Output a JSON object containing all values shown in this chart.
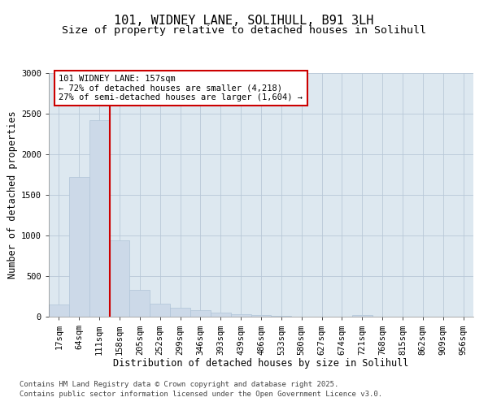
{
  "title_line1": "101, WIDNEY LANE, SOLIHULL, B91 3LH",
  "title_line2": "Size of property relative to detached houses in Solihull",
  "xlabel": "Distribution of detached houses by size in Solihull",
  "ylabel": "Number of detached properties",
  "categories": [
    "17sqm",
    "64sqm",
    "111sqm",
    "158sqm",
    "205sqm",
    "252sqm",
    "299sqm",
    "346sqm",
    "393sqm",
    "439sqm",
    "486sqm",
    "533sqm",
    "580sqm",
    "627sqm",
    "674sqm",
    "721sqm",
    "768sqm",
    "815sqm",
    "862sqm",
    "909sqm",
    "956sqm"
  ],
  "values": [
    155,
    1720,
    2420,
    940,
    330,
    160,
    110,
    80,
    50,
    30,
    20,
    10,
    5,
    5,
    5,
    25,
    5,
    5,
    5,
    5,
    5
  ],
  "bar_color": "#ccd9e8",
  "bar_edge_color": "#b0c4d8",
  "vline_color": "#cc0000",
  "annotation_text": "101 WIDNEY LANE: 157sqm\n← 72% of detached houses are smaller (4,218)\n27% of semi-detached houses are larger (1,604) →",
  "annotation_box_color": "#cc0000",
  "annotation_bg_color": "#ffffff",
  "ylim": [
    0,
    3000
  ],
  "yticks": [
    0,
    500,
    1000,
    1500,
    2000,
    2500,
    3000
  ],
  "grid_color": "#b8c8d8",
  "background_color": "#dde8f0",
  "footer_line1": "Contains HM Land Registry data © Crown copyright and database right 2025.",
  "footer_line2": "Contains public sector information licensed under the Open Government Licence v3.0.",
  "title_fontsize": 11,
  "subtitle_fontsize": 9.5,
  "axis_label_fontsize": 8.5,
  "tick_fontsize": 7.5,
  "annotation_fontsize": 7.5,
  "footer_fontsize": 6.5
}
